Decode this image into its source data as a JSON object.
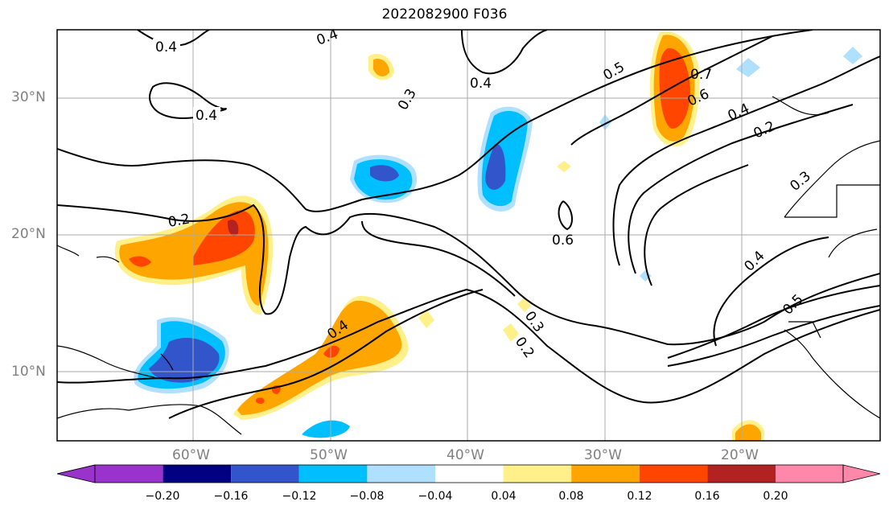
{
  "title": "2022082900 F036",
  "lat_labels": [
    "30°N",
    "20°N",
    "10°N"
  ],
  "lon_labels": [
    "60°W",
    "50°W",
    "40°W",
    "30°W",
    "20°W"
  ],
  "contour_labels": [
    "0.4",
    "0.4",
    "0.4",
    "0.3",
    "0.4",
    "0.5",
    "0.7",
    "0.6",
    "0.4",
    "0.2",
    "0.2",
    "0.6",
    "0.3",
    "0.4",
    "0.4",
    "0.3",
    "0.2",
    "0.5"
  ],
  "colorbar": {
    "labels": [
      "−0.20",
      "−0.16",
      "−0.12",
      "−0.08",
      "−0.04",
      "0.04",
      "0.08",
      "0.12",
      "0.16",
      "0.20"
    ],
    "colors": [
      "#9933cc",
      "#000080",
      "#3355cc",
      "#00bfff",
      "#b0e0ff",
      "#ffffff",
      "#fff08a",
      "#ffa500",
      "#ff4500",
      "#b22222",
      "#ff88aa"
    ]
  }
}
